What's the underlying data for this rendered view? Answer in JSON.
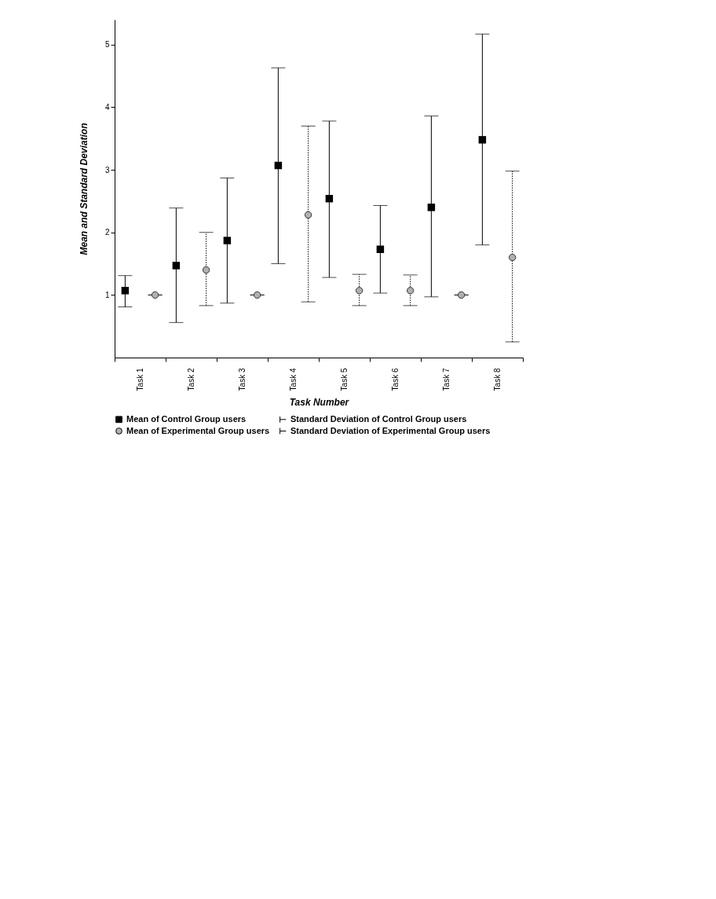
{
  "chart_data": {
    "type": "scatter",
    "xlabel": "Task Number",
    "ylabel": "Mean and Standard Deviation",
    "categories": [
      "Task 1",
      "Task 2",
      "Task 3",
      "Task 4",
      "Task 5",
      "Task 6",
      "Task 7",
      "Task 8"
    ],
    "series": [
      {
        "name": "Mean of Control Group users",
        "color": "#000000",
        "marker": "square",
        "line_style": "solid",
        "values": [
          1.07,
          1.47,
          1.87,
          3.07,
          2.54,
          1.73,
          2.4,
          3.48
        ],
        "errors": [
          [
            0.81,
            1.31
          ],
          [
            0.56,
            2.39
          ],
          [
            0.87,
            2.87
          ],
          [
            1.5,
            4.63
          ],
          [
            1.28,
            3.78
          ],
          [
            1.03,
            2.43
          ],
          [
            0.97,
            3.86
          ],
          [
            1.8,
            5.17
          ]
        ]
      },
      {
        "name": "Mean of Experimental Group users",
        "color": "#b0b0b0",
        "marker": "circle",
        "line_style": "dotted",
        "values": [
          1.0,
          1.4,
          1.0,
          2.28,
          1.07,
          1.07,
          1.0,
          1.6
        ],
        "errors": [
          [
            1.0,
            1.0
          ],
          [
            0.83,
            2.0
          ],
          [
            1.0,
            1.0
          ],
          [
            0.89,
            3.7
          ],
          [
            0.83,
            1.33
          ],
          [
            0.83,
            1.32
          ],
          [
            1.0,
            1.0
          ],
          [
            0.25,
            2.98
          ]
        ]
      }
    ],
    "annotations": [
      "Standard Deviation of Control Group users",
      "Standard Deviation of Experimental Group users"
    ],
    "ylim": [
      0,
      5.4
    ],
    "yticks": [
      1,
      2,
      3,
      4,
      5
    ],
    "grid": false,
    "legend": "bottom"
  }
}
